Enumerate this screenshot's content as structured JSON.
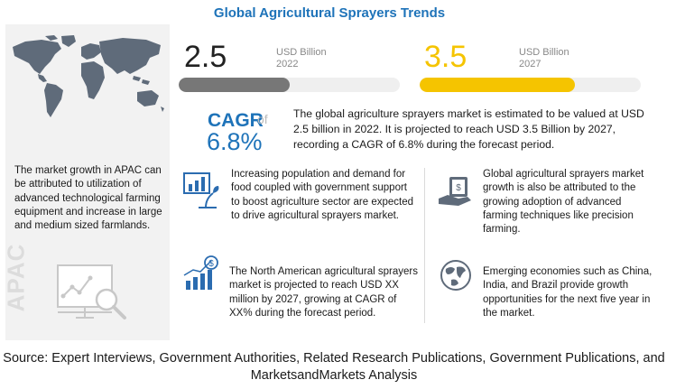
{
  "title": "Global Agricultural Sprayers Trends",
  "stats": [
    {
      "value": "2.5",
      "unit": "USD Billion",
      "year": "2022",
      "progress": 0.5,
      "color": "#777777"
    },
    {
      "value": "3.5",
      "unit": "USD Billion",
      "year": "2027",
      "progress": 0.7,
      "color": "#f5c400"
    }
  ],
  "cagr": {
    "label": "CAGR",
    "of": "of",
    "value": "6.8%"
  },
  "summary": "The global agriculture sprayers market is estimated to be valued at USD 2.5 billion in 2022. It is projected to reach USD 3.5 Billion by 2027, recording a CAGR of 6.8% during the forecast period.",
  "apac": {
    "text": "The market growth in APAC can be attributed to utilization of advanced technological farming equipment and increase in large and medium sized farmlands.",
    "watermark": "APAC"
  },
  "items": [
    {
      "icon": "plant-growth-icon",
      "text": "Increasing population and demand for food coupled with government support to boost agriculture sector are expected to drive agricultural sprayers market."
    },
    {
      "icon": "money-hand-icon",
      "text": "Global agricultural sprayers market growth is also be attributed to the growing adoption of advanced farming techniques like precision farming."
    },
    {
      "icon": "dollar-growth-chart-icon",
      "text": "The North American agricultural sprayers market is projected to reach USD XX million by 2027, growing at CAGR of XX% during the forecast period."
    },
    {
      "icon": "globe-icon",
      "text": "Emerging economies such as China, India, and Brazil provide growth opportunities for the next five year in the market."
    }
  ],
  "source": "Source: Expert Interviews, Government Authorities, Related Research Publications, Government Publications, and MarketsandMarkets Analysis",
  "colors": {
    "accent": "#1e73b9",
    "highlight": "#f5c400",
    "panel": "#f2f2f2"
  }
}
